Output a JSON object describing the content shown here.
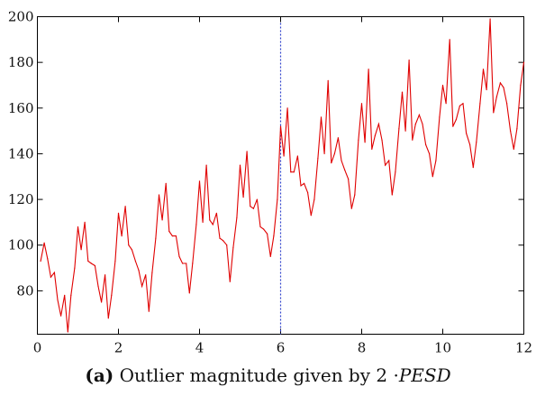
{
  "chart_data": {
    "type": "line",
    "xlim": [
      0,
      12
    ],
    "ylim": [
      61,
      200
    ],
    "x_ticks": [
      0,
      2,
      4,
      6,
      8,
      10,
      12
    ],
    "y_ticks": [
      80,
      100,
      120,
      140,
      160,
      180,
      200
    ],
    "grid": false,
    "legend": "none",
    "series_color": "#e00000",
    "marker_line": {
      "x": 6,
      "color": "#3344cc",
      "style": "dashed"
    },
    "series": [
      {
        "x": [
          0.08,
          0.17,
          0.25,
          0.33,
          0.42,
          0.5,
          0.58,
          0.67,
          0.75,
          0.83,
          0.92,
          1.0,
          1.08,
          1.17,
          1.25,
          1.33,
          1.42,
          1.5,
          1.58,
          1.67,
          1.75,
          1.83,
          1.92,
          2.0,
          2.08,
          2.17,
          2.25,
          2.33,
          2.42,
          2.5,
          2.58,
          2.67,
          2.75,
          2.83,
          2.92,
          3.0,
          3.08,
          3.17,
          3.25,
          3.33,
          3.42,
          3.5,
          3.58,
          3.67,
          3.75,
          3.83,
          3.92,
          4.0,
          4.08,
          4.17,
          4.25,
          4.33,
          4.42,
          4.5,
          4.58,
          4.67,
          4.75,
          4.83,
          4.92,
          5.0,
          5.08,
          5.17,
          5.25,
          5.33,
          5.42,
          5.5,
          5.58,
          5.67,
          5.75,
          5.83,
          5.92,
          6.0,
          6.08,
          6.17,
          6.25,
          6.33,
          6.42,
          6.5,
          6.58,
          6.67,
          6.75,
          6.83,
          6.92,
          7.0,
          7.08,
          7.17,
          7.25,
          7.33,
          7.42,
          7.5,
          7.58,
          7.67,
          7.75,
          7.83,
          7.92,
          8.0,
          8.08,
          8.17,
          8.25,
          8.33,
          8.42,
          8.5,
          8.58,
          8.67,
          8.75,
          8.83,
          8.92,
          9.0,
          9.08,
          9.17,
          9.25,
          9.33,
          9.42,
          9.5,
          9.58,
          9.67,
          9.75,
          9.83,
          9.92,
          10.0,
          10.08,
          10.17,
          10.25,
          10.33,
          10.42,
          10.5,
          10.58,
          10.67,
          10.75,
          10.83,
          10.92,
          11.0,
          11.08,
          11.17,
          11.25,
          11.33,
          11.42,
          11.5,
          11.58,
          11.67,
          11.75,
          11.83,
          11.92,
          12.0
        ],
        "values": [
          93,
          101,
          94,
          86,
          88,
          76,
          69,
          78,
          62,
          78,
          90,
          108,
          98,
          110,
          93,
          92,
          91,
          82,
          75,
          87,
          68,
          78,
          93,
          114,
          104,
          117,
          100,
          98,
          93,
          89,
          82,
          87,
          71,
          88,
          103,
          122,
          111,
          127,
          106,
          104,
          104,
          95,
          92,
          92,
          79,
          92,
          109,
          128,
          110,
          135,
          111,
          109,
          114,
          103,
          102,
          100,
          84,
          99,
          112,
          135,
          121,
          141,
          117,
          116,
          120,
          108,
          107,
          105,
          95,
          104,
          120,
          152,
          139,
          160,
          132,
          132,
          139,
          126,
          127,
          123,
          113,
          120,
          138,
          156,
          140,
          172,
          136,
          140,
          147,
          137,
          133,
          129,
          116,
          122,
          146,
          162,
          145,
          177,
          142,
          148,
          153,
          146,
          135,
          137,
          122,
          132,
          151,
          167,
          150,
          181,
          146,
          153,
          157,
          153,
          144,
          140,
          130,
          137,
          156,
          170,
          162,
          190,
          152,
          155,
          161,
          162,
          149,
          144,
          134,
          145,
          162,
          177,
          168,
          199,
          158,
          165,
          171,
          169,
          162,
          150,
          142,
          151,
          170,
          180
        ]
      }
    ]
  },
  "caption": {
    "label": "(a)",
    "text": "Outlier magnitude given by",
    "factor": "2 ·",
    "symbol": "PESD"
  }
}
